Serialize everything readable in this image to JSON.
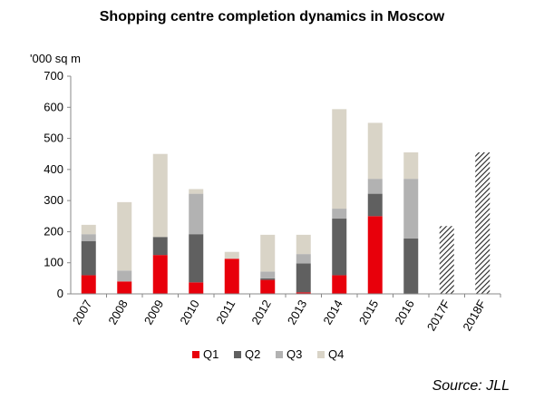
{
  "chart_data": {
    "type": "bar",
    "stacked": true,
    "title": "Shopping centre completion dynamics in Moscow",
    "ylabel": "'000 sq m",
    "xlabel": "",
    "categories": [
      "2007",
      "2008",
      "2009",
      "2010",
      "2011",
      "2012",
      "2013",
      "2014",
      "2015",
      "2016",
      "2017F",
      "2018F"
    ],
    "series": [
      {
        "name": "Q1",
        "color": "#e8000b",
        "values": [
          60,
          40,
          125,
          37,
          113,
          45,
          5,
          60,
          250,
          0,
          null,
          null
        ]
      },
      {
        "name": "Q2",
        "color": "#606060",
        "values": [
          110,
          0,
          58,
          155,
          0,
          5,
          93,
          182,
          72,
          178,
          null,
          null
        ]
      },
      {
        "name": "Q3",
        "color": "#b2b2b2",
        "values": [
          22,
          35,
          0,
          130,
          0,
          22,
          30,
          32,
          48,
          192,
          null,
          null
        ]
      },
      {
        "name": "Q4",
        "color": "#d9d4c7",
        "values": [
          30,
          220,
          267,
          15,
          22,
          118,
          62,
          320,
          180,
          85,
          null,
          null
        ]
      }
    ],
    "forecast": {
      "pattern": "hatched",
      "values": [
        null,
        null,
        null,
        null,
        null,
        null,
        null,
        null,
        null,
        null,
        218,
        455
      ]
    },
    "ylim": [
      0,
      700
    ],
    "yticks": [
      0,
      100,
      200,
      300,
      400,
      500,
      600,
      700
    ],
    "grid": false,
    "legend_position": "bottom",
    "source": "Source: JLL"
  }
}
